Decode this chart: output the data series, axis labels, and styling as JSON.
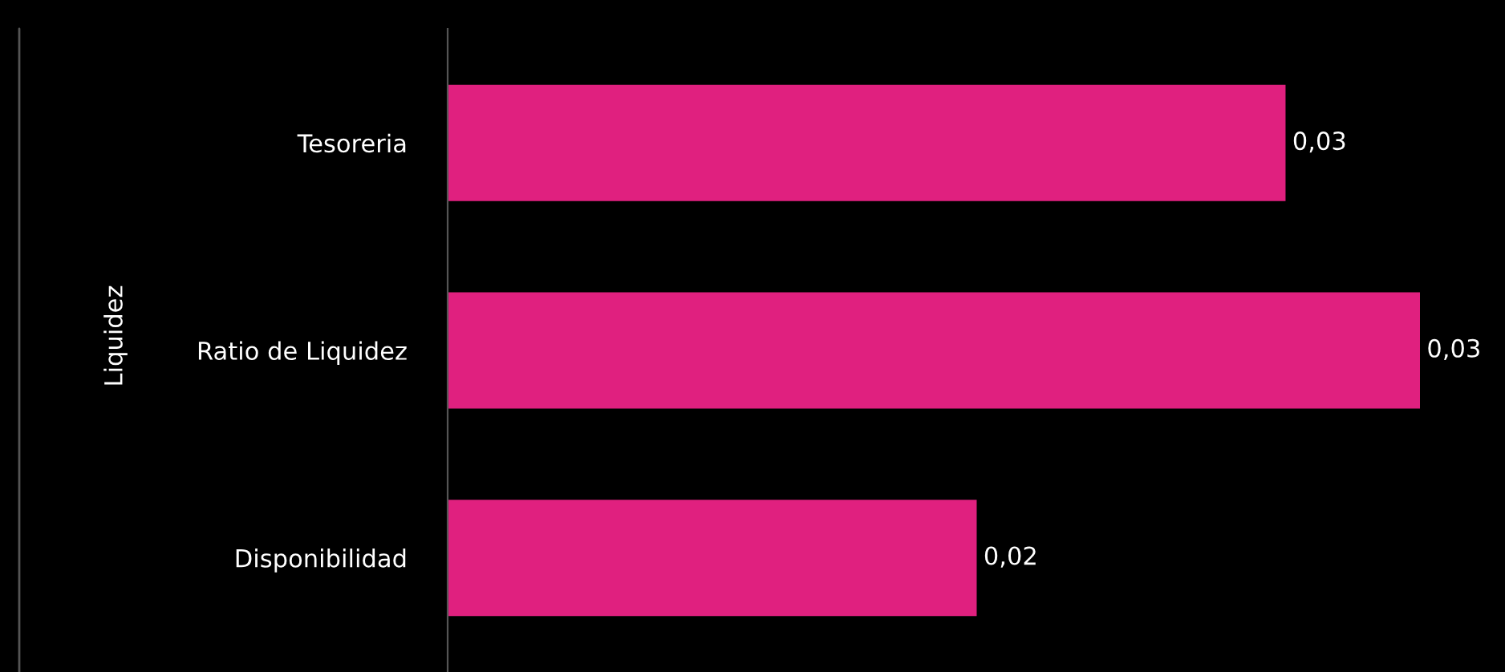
{
  "chart_data": {
    "type": "bar",
    "orientation": "horizontal",
    "ylabel": "Liquidez",
    "categories": [
      "Tesoreria",
      "Ratio de Liquidez",
      "Disponibilidad"
    ],
    "values": [
      0.0293,
      0.034,
      0.0185
    ],
    "value_labels": [
      "0,03",
      "0,03",
      "0,02"
    ],
    "color": "#e0207f",
    "grid": false,
    "legend": false
  }
}
